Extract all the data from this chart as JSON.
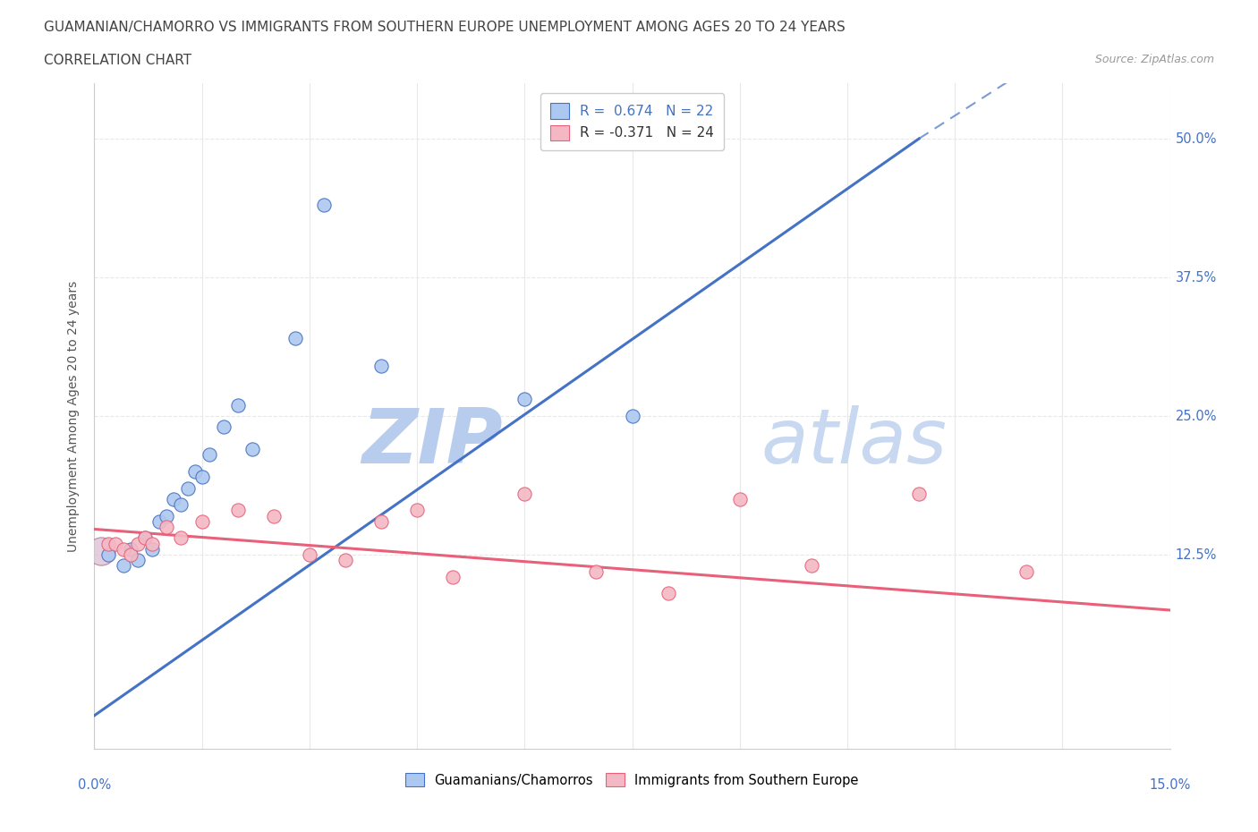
{
  "title_line1": "GUAMANIAN/CHAMORRO VS IMMIGRANTS FROM SOUTHERN EUROPE UNEMPLOYMENT AMONG AGES 20 TO 24 YEARS",
  "title_line2": "CORRELATION CHART",
  "source_text": "Source: ZipAtlas.com",
  "ylabel": "Unemployment Among Ages 20 to 24 years",
  "xlim": [
    0.0,
    0.15
  ],
  "ylim": [
    -0.05,
    0.55
  ],
  "blue_R": "0.674",
  "blue_N": "22",
  "pink_R": "-0.371",
  "pink_N": "24",
  "blue_color": "#adc8f0",
  "pink_color": "#f4b8c4",
  "blue_line_color": "#4472c4",
  "pink_line_color": "#e8607a",
  "watermark_color": "#ccddf5",
  "background_color": "#ffffff",
  "blue_scatter_x": [
    0.002,
    0.004,
    0.005,
    0.006,
    0.007,
    0.008,
    0.009,
    0.01,
    0.011,
    0.012,
    0.013,
    0.014,
    0.015,
    0.016,
    0.018,
    0.02,
    0.022,
    0.028,
    0.032,
    0.04,
    0.06,
    0.075
  ],
  "blue_scatter_y": [
    0.125,
    0.115,
    0.13,
    0.12,
    0.14,
    0.13,
    0.155,
    0.16,
    0.175,
    0.17,
    0.185,
    0.2,
    0.195,
    0.215,
    0.24,
    0.26,
    0.22,
    0.32,
    0.44,
    0.295,
    0.265,
    0.25
  ],
  "pink_scatter_x": [
    0.002,
    0.003,
    0.004,
    0.005,
    0.006,
    0.007,
    0.008,
    0.01,
    0.012,
    0.015,
    0.02,
    0.025,
    0.03,
    0.035,
    0.04,
    0.045,
    0.05,
    0.06,
    0.07,
    0.08,
    0.09,
    0.1,
    0.115,
    0.13
  ],
  "pink_scatter_y": [
    0.135,
    0.135,
    0.13,
    0.125,
    0.135,
    0.14,
    0.135,
    0.15,
    0.14,
    0.155,
    0.165,
    0.16,
    0.125,
    0.12,
    0.155,
    0.165,
    0.105,
    0.18,
    0.11,
    0.09,
    0.175,
    0.115,
    0.18,
    0.11
  ],
  "blue_trend_x": [
    0.0,
    0.115
  ],
  "blue_trend_y": [
    -0.02,
    0.5
  ],
  "pink_trend_x": [
    0.0,
    0.15
  ],
  "pink_trend_y": [
    0.148,
    0.075
  ],
  "grid_color": "#e8e8e8",
  "ytick_positions": [
    0.125,
    0.25,
    0.375,
    0.5
  ],
  "ytick_labels": [
    "12.5%",
    "25.0%",
    "37.5%",
    "50.0%"
  ]
}
